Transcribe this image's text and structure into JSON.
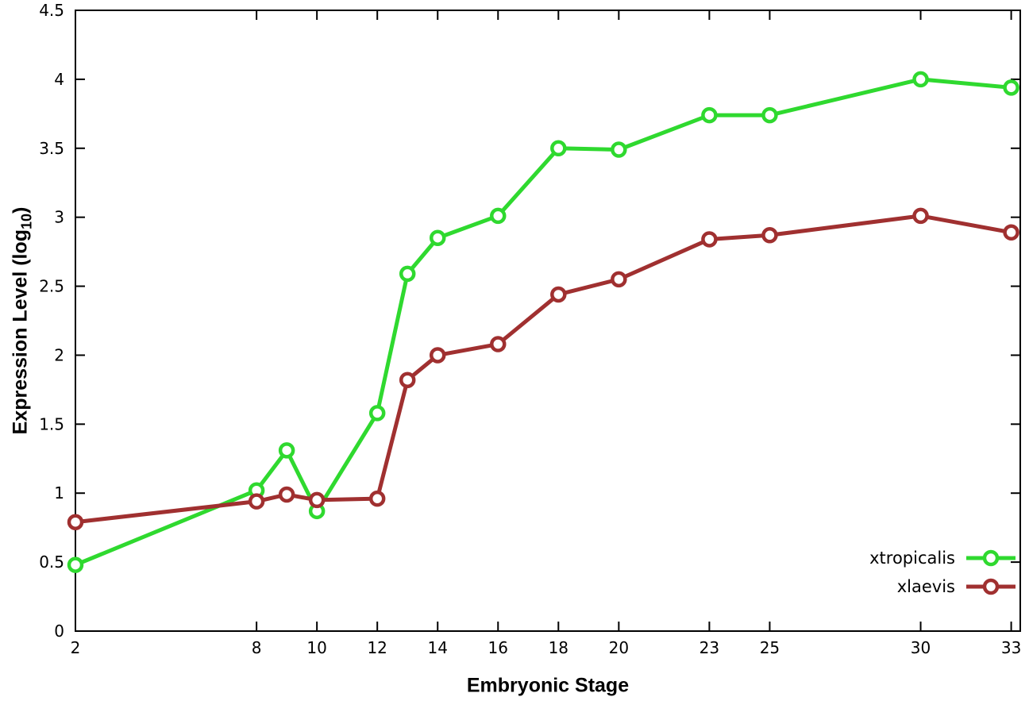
{
  "chart_data": {
    "type": "line",
    "title": "",
    "xlabel": "Embryonic Stage",
    "ylabel_prefix": "Expression Level (log",
    "ylabel_sub": "10",
    "ylabel_suffix": ")",
    "xlim": [
      2,
      33.3
    ],
    "ylim": [
      0,
      4.5
    ],
    "x_ticks": [
      2,
      8,
      10,
      12,
      14,
      16,
      18,
      20,
      23,
      25,
      30,
      33
    ],
    "y_ticks": [
      0,
      0.5,
      1,
      1.5,
      2,
      2.5,
      3,
      3.5,
      4,
      4.5
    ],
    "grid": false,
    "legend_position": "bottom-right-inside",
    "background_color": "#ffffff",
    "axis_color": "#000000",
    "series": [
      {
        "name": "xtropicalis",
        "color": "#2fd92f",
        "x": [
          2,
          8,
          9,
          10,
          12,
          13,
          14,
          16,
          18,
          20,
          23,
          25,
          30,
          33
        ],
        "y": [
          0.48,
          1.02,
          1.31,
          0.87,
          1.58,
          2.59,
          2.85,
          3.01,
          3.5,
          3.49,
          3.74,
          3.74,
          4.0,
          3.94
        ]
      },
      {
        "name": "xlaevis",
        "color": "#a03030",
        "x": [
          2,
          8,
          9,
          10,
          12,
          13,
          14,
          16,
          18,
          20,
          23,
          25,
          30,
          33
        ],
        "y": [
          0.79,
          0.94,
          0.99,
          0.95,
          0.96,
          1.82,
          2.0,
          2.08,
          2.44,
          2.55,
          2.84,
          2.87,
          3.01,
          2.89
        ]
      }
    ]
  }
}
